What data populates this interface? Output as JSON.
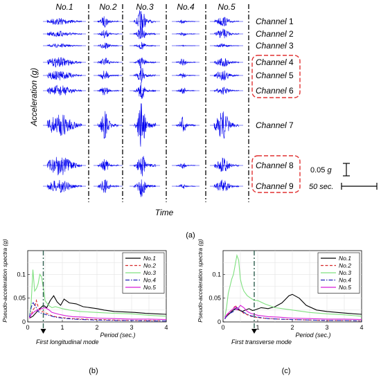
{
  "figure": {
    "panel_a": {
      "ylabel": "Acceleration (g)",
      "xlabel": "Time",
      "records": [
        "No.1",
        "No.2",
        "No.3",
        "No.4",
        "No.5"
      ],
      "channel_word": "Channel",
      "channels": [
        "1",
        "2",
        "3",
        "4",
        "5",
        "6",
        "7",
        "8",
        "9"
      ],
      "scale_accel": "0.05",
      "scale_accel_unit": "g",
      "scale_time": "50 sec.",
      "caption": "(a)"
    },
    "panel_b": {
      "caption": "(b)",
      "annotation": "First longitudinal mode"
    },
    "panel_c": {
      "caption": "(c)",
      "annotation": "First transverse mode"
    }
  },
  "colors": {
    "waveform": "#0000ee",
    "dashdot_divider": "#000000",
    "highlight_box": "#e03030",
    "mode_line": "#2f5f4f",
    "series": [
      "#000000",
      "#d62728",
      "#7ee07e",
      "#1f1fb4",
      "#d81bd8"
    ]
  },
  "chart_data": [
    {
      "type": "line",
      "panel": "(b)",
      "xlabel": "Period (sec.)",
      "ylabel": "Pseudo-acceleration spectra (g)",
      "xlim": [
        0,
        4
      ],
      "ylim": [
        0,
        0.15
      ],
      "xticks": [
        0,
        1,
        2,
        3,
        4
      ],
      "yticks": [
        0,
        0.05,
        0.1
      ],
      "grid": true,
      "legend": "top-right",
      "mode_period": 0.45,
      "series": [
        {
          "name": "No.1",
          "style": "solid",
          "x": [
            0.05,
            0.15,
            0.25,
            0.35,
            0.45,
            0.55,
            0.65,
            0.75,
            0.85,
            0.95,
            1.05,
            1.2,
            1.4,
            1.6,
            1.8,
            2.0,
            2.2,
            2.5,
            2.8,
            3.1,
            3.4,
            3.7,
            4.0
          ],
          "y": [
            0.008,
            0.012,
            0.02,
            0.028,
            0.035,
            0.03,
            0.045,
            0.055,
            0.042,
            0.035,
            0.048,
            0.04,
            0.038,
            0.032,
            0.03,
            0.028,
            0.025,
            0.022,
            0.021,
            0.02,
            0.018,
            0.017,
            0.016
          ]
        },
        {
          "name": "No.2",
          "style": "dashed",
          "x": [
            0.05,
            0.1,
            0.15,
            0.2,
            0.25,
            0.3,
            0.35,
            0.4,
            0.5,
            0.6,
            0.7,
            0.8,
            1.0,
            1.3,
            1.6,
            2.0,
            2.5,
            3.0,
            3.5,
            4.0
          ],
          "y": [
            0.008,
            0.015,
            0.025,
            0.03,
            0.045,
            0.032,
            0.025,
            0.022,
            0.02,
            0.016,
            0.013,
            0.011,
            0.009,
            0.007,
            0.006,
            0.005,
            0.004,
            0.003,
            0.003,
            0.002
          ]
        },
        {
          "name": "No.3",
          "style": "solid",
          "x": [
            0.05,
            0.1,
            0.15,
            0.2,
            0.25,
            0.3,
            0.35,
            0.4,
            0.45,
            0.5,
            0.6,
            0.7,
            0.8,
            1.0,
            1.2,
            1.5,
            2.0,
            2.5,
            3.0,
            3.5,
            4.0
          ],
          "y": [
            0.01,
            0.04,
            0.11,
            0.065,
            0.07,
            0.08,
            0.1,
            0.095,
            0.072,
            0.045,
            0.035,
            0.03,
            0.032,
            0.028,
            0.025,
            0.022,
            0.02,
            0.018,
            0.017,
            0.014,
            0.012
          ]
        },
        {
          "name": "No.4",
          "style": "dashdot",
          "x": [
            0.05,
            0.1,
            0.15,
            0.2,
            0.25,
            0.3,
            0.4,
            0.5,
            0.6,
            0.8,
            1.0,
            1.3,
            1.6,
            2.0,
            2.5,
            3.0,
            3.5,
            4.0
          ],
          "y": [
            0.01,
            0.03,
            0.042,
            0.035,
            0.03,
            0.022,
            0.018,
            0.016,
            0.014,
            0.01,
            0.008,
            0.006,
            0.005,
            0.004,
            0.003,
            0.003,
            0.002,
            0.002
          ]
        },
        {
          "name": "No.5",
          "style": "solid",
          "x": [
            0.05,
            0.1,
            0.2,
            0.3,
            0.4,
            0.5,
            0.6,
            0.7,
            0.9,
            1.1,
            1.3,
            1.6,
            2.0,
            2.5,
            3.0,
            3.5,
            4.0
          ],
          "y": [
            0.008,
            0.015,
            0.022,
            0.025,
            0.028,
            0.03,
            0.026,
            0.02,
            0.016,
            0.013,
            0.011,
            0.01,
            0.008,
            0.007,
            0.006,
            0.006,
            0.005
          ]
        }
      ]
    },
    {
      "type": "line",
      "panel": "(c)",
      "xlabel": "Period (sec.)",
      "ylabel": "Pseudo-acceleration spectra (g)",
      "xlim": [
        0,
        4
      ],
      "ylim": [
        0,
        0.15
      ],
      "xticks": [
        0,
        1,
        2,
        3,
        4
      ],
      "yticks": [
        0,
        0.05,
        0.1
      ],
      "grid": true,
      "legend": "top-right",
      "mode_period": 0.9,
      "series": [
        {
          "name": "No.1",
          "style": "solid",
          "x": [
            0.05,
            0.15,
            0.25,
            0.35,
            0.45,
            0.55,
            0.65,
            0.75,
            0.85,
            0.95,
            1.1,
            1.3,
            1.5,
            1.7,
            1.9,
            2.0,
            2.2,
            2.4,
            2.7,
            3.0,
            3.3,
            3.6,
            4.0
          ],
          "y": [
            0.008,
            0.015,
            0.022,
            0.028,
            0.025,
            0.022,
            0.025,
            0.028,
            0.024,
            0.026,
            0.03,
            0.028,
            0.032,
            0.04,
            0.055,
            0.058,
            0.05,
            0.035,
            0.025,
            0.022,
            0.02,
            0.018,
            0.016
          ]
        },
        {
          "name": "No.2",
          "style": "dashed",
          "x": [
            0.05,
            0.1,
            0.2,
            0.3,
            0.35,
            0.4,
            0.5,
            0.6,
            0.8,
            1.0,
            1.3,
            1.6,
            2.0,
            2.5,
            3.0,
            3.5,
            4.0
          ],
          "y": [
            0.006,
            0.012,
            0.022,
            0.028,
            0.035,
            0.03,
            0.024,
            0.018,
            0.012,
            0.009,
            0.007,
            0.006,
            0.005,
            0.004,
            0.003,
            0.003,
            0.002
          ]
        },
        {
          "name": "No.3",
          "style": "solid",
          "x": [
            0.05,
            0.1,
            0.15,
            0.2,
            0.25,
            0.3,
            0.35,
            0.4,
            0.45,
            0.5,
            0.55,
            0.6,
            0.7,
            0.8,
            0.9,
            1.0,
            1.2,
            1.5,
            2.0,
            2.5,
            3.0,
            3.5,
            4.0
          ],
          "y": [
            0.01,
            0.03,
            0.06,
            0.075,
            0.09,
            0.1,
            0.12,
            0.14,
            0.13,
            0.09,
            0.075,
            0.065,
            0.055,
            0.05,
            0.045,
            0.045,
            0.038,
            0.03,
            0.025,
            0.02,
            0.017,
            0.015,
            0.012
          ]
        },
        {
          "name": "No.4",
          "style": "dashdot",
          "x": [
            0.05,
            0.1,
            0.2,
            0.3,
            0.4,
            0.5,
            0.6,
            0.8,
            1.0,
            1.3,
            1.6,
            2.0,
            2.5,
            3.0,
            3.5,
            4.0
          ],
          "y": [
            0.006,
            0.012,
            0.018,
            0.022,
            0.03,
            0.025,
            0.02,
            0.013,
            0.01,
            0.007,
            0.006,
            0.005,
            0.004,
            0.003,
            0.003,
            0.002
          ]
        },
        {
          "name": "No.5",
          "style": "solid",
          "x": [
            0.05,
            0.1,
            0.2,
            0.3,
            0.35,
            0.4,
            0.5,
            0.6,
            0.7,
            0.8,
            1.0,
            1.3,
            1.6,
            2.0,
            2.5,
            3.0,
            3.5,
            4.0
          ],
          "y": [
            0.008,
            0.015,
            0.022,
            0.028,
            0.032,
            0.025,
            0.035,
            0.03,
            0.022,
            0.018,
            0.014,
            0.011,
            0.01,
            0.008,
            0.007,
            0.006,
            0.006,
            0.005
          ]
        }
      ]
    }
  ]
}
